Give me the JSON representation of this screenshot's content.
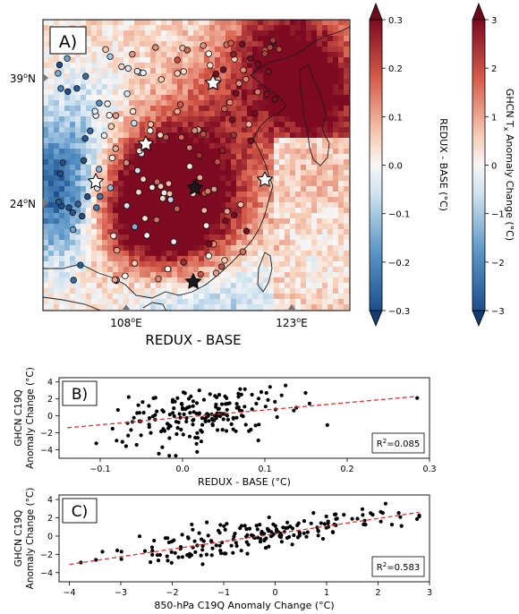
{
  "panel_a": {
    "label": "A)",
    "xlabel": "REDUX - BASE",
    "lon_ticks": [
      "108",
      "123"
    ],
    "lon_suffix": "E",
    "lat_ticks": [
      "39",
      "24"
    ],
    "lat_suffix": "N",
    "deg": "o"
  },
  "colorbar_redux": {
    "ticks": [
      "0.3",
      "0.2",
      "0.1",
      "0.0",
      "−0.1",
      "−0.2",
      "−0.3"
    ],
    "label": "REDUX - BASE (°C)",
    "range": [
      -0.3,
      0.3
    ]
  },
  "colorbar_ghcn": {
    "ticks": [
      "3",
      "2",
      "1",
      "0",
      "−1",
      "−2",
      "−3"
    ],
    "label": "GHCN T",
    "label_sub": "x",
    "label_rest": " Anomaly Change (°C)",
    "range": [
      -3,
      3
    ]
  },
  "colors": {
    "warm": "#8b0a1f",
    "mid": "#f7f7f7",
    "cool": "#1f4e8c",
    "fit_line": "#e03030",
    "points": "#000000"
  },
  "chart_data": [
    {
      "type": "scatter",
      "panel": "B)",
      "xlabel": "REDUX - BASE (°C)",
      "ylabel": [
        "GHCN C19Q",
        "Anomaly Change (°C)"
      ],
      "xlim": [
        -0.15,
        0.3
      ],
      "ylim": [
        -5,
        4.5
      ],
      "xticks": [
        "−0.1",
        "0.0",
        "0.1",
        "0.2",
        "0.3"
      ],
      "yticks": [
        "4",
        "2",
        "0",
        "−2",
        "−4"
      ],
      "r2_label": "R",
      "r2_value": "=0.085",
      "fit": {
        "x": [
          -0.14,
          0.285
        ],
        "y": [
          -1.4,
          2.3
        ]
      },
      "seed": 7,
      "n_points": 190
    },
    {
      "type": "scatter",
      "panel": "C)",
      "xlabel": "850-hPa C19Q Anomaly Change (°C)",
      "ylabel": [
        "GHCN C19Q",
        "Anomaly Change (°C)"
      ],
      "xlim": [
        -4.2,
        3.0
      ],
      "ylim": [
        -5,
        4.5
      ],
      "xticks": [
        "−4",
        "−3",
        "−2",
        "−1",
        "0",
        "1",
        "2",
        "3"
      ],
      "yticks": [
        "4",
        "2",
        "0",
        "−2",
        "−4"
      ],
      "r2_label": "R",
      "r2_value": "=0.583",
      "fit": {
        "x": [
          -4.0,
          2.8
        ],
        "y": [
          -3.1,
          2.6
        ]
      },
      "seed": 19,
      "n_points": 190
    }
  ]
}
